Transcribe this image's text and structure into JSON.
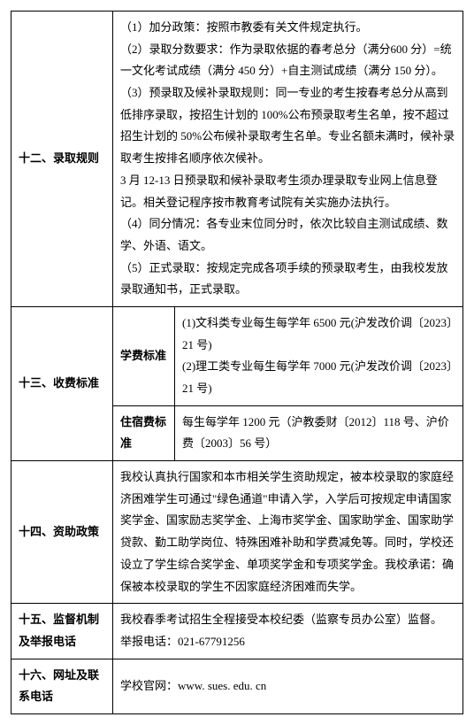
{
  "rows": {
    "r1": {
      "label": "十二、录取规则",
      "content": "（1）加分政策：按照市教委有关文件规定执行。\n（2）录取分数要求：作为录取依据的春考总分（满分600 分）=统一文化考试成绩（满分 450 分）+自主测试成绩（满分 150 分）。\n（3）预录取及候补录取规则：同一专业的考生按春考总分从高到低排序录取，按招生计划的 100%公布预录取考生名单，按不超过招生计划的 50%公布候补录取考生名单。专业名额未满时，候补录取考生按排名顺序依次候补。\n3 月 12-13 日预录取和候补录取考生须办理录取专业网上信息登记。相关登记程序按市教育考试院有关实施办法执行。\n（4）同分情况：各专业末位同分时，依次比较自主测试成绩、数学、外语、语文。\n（5）正式录取：按规定完成各项手续的预录取考生，由我校发放录取通知书，正式录取。"
    },
    "r2": {
      "label": "十三、收费标准",
      "sub1_label": "学费标准",
      "sub1_content": "(1)文科类专业每生每学年 6500 元(沪发改价调〔2023〕21 号)\n(2)理工类专业每生每学年 7000 元(沪发改价调〔2023〕21 号)",
      "sub2_label": "住宿费标准",
      "sub2_content": "每生每学年 1200 元（沪教委财〔2012〕118 号、沪价费〔2003〕56 号）"
    },
    "r3": {
      "label": "十四、资助政策",
      "content": "我校认真执行国家和本市相关学生资助规定，被本校录取的家庭经济困难学生可通过\"绿色通道\"申请入学，入学后可按规定申请国家奖学金、国家励志奖学金、上海市奖学金、国家助学金、国家助学贷款、勤工助学岗位、特殊困难补助和学费减免等。同时，学校还设立了学生综合奖学金、单项奖学金和专项奖学金。我校承诺：确保被本校录取的学生不因家庭经济困难而失学。"
    },
    "r4": {
      "label": "十五、监督机制及举报电话",
      "content": "我校春季考试招生全程接受本校纪委（监察专员办公室）监督。\n举报电话：021-67791256"
    },
    "r5": {
      "label": "十六、网址及联系电话",
      "content": "学校官网：www. sues. edu. cn"
    }
  },
  "style": {
    "border_color": "#000000",
    "background_color": "#ffffff",
    "font_size": 13,
    "line_height": 1.9
  }
}
